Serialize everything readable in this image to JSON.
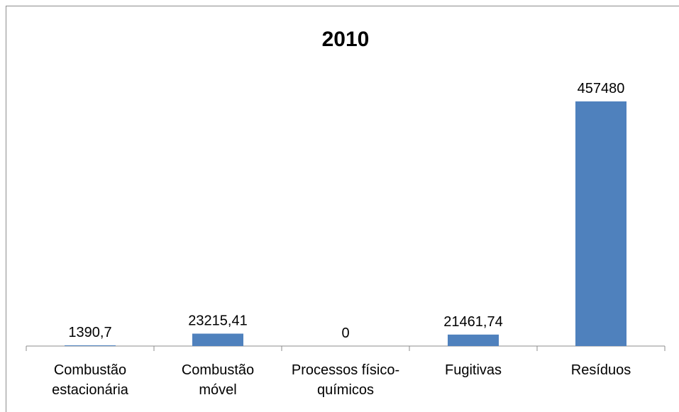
{
  "chart_data": {
    "type": "bar",
    "title": "2010",
    "xlabel": "",
    "ylabel": "",
    "categories": [
      [
        "Combustão",
        "estacionária"
      ],
      [
        "Combustão",
        "móvel"
      ],
      [
        "Processos físico-",
        "químicos"
      ],
      [
        "Fugitivas"
      ],
      [
        "Resíduos"
      ]
    ],
    "values": [
      1390.7,
      23215.41,
      0,
      21461.74,
      457480
    ],
    "data_labels": [
      "1390,7",
      "23215,41",
      "0",
      "21461,74",
      "457480"
    ],
    "ylim": [
      0,
      500000
    ],
    "grid": false,
    "legend": "none",
    "bar_color": "#4f81bd",
    "axis_color": "#8c8c8c"
  }
}
